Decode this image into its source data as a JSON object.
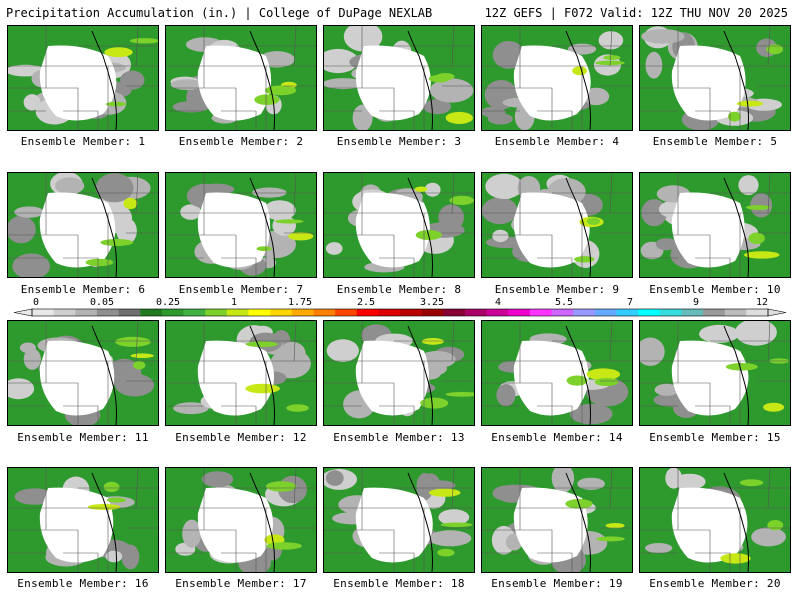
{
  "header": {
    "title_left": "Precipitation Accumulation (in.) | College of DuPage NEXLAB",
    "title_right": "12Z GEFS | F072 Valid: 12Z THU NOV 20 2025"
  },
  "members": [
    {
      "label": "Ensemble Member: 1"
    },
    {
      "label": "Ensemble Member: 2"
    },
    {
      "label": "Ensemble Member: 3"
    },
    {
      "label": "Ensemble Member: 4"
    },
    {
      "label": "Ensemble Member: 5"
    },
    {
      "label": "Ensemble Member: 6"
    },
    {
      "label": "Ensemble Member: 7"
    },
    {
      "label": "Ensemble Member: 8"
    },
    {
      "label": "Ensemble Member: 9"
    },
    {
      "label": "Ensemble Member: 10"
    },
    {
      "label": "Ensemble Member: 11"
    },
    {
      "label": "Ensemble Member: 12"
    },
    {
      "label": "Ensemble Member: 13"
    },
    {
      "label": "Ensemble Member: 14"
    },
    {
      "label": "Ensemble Member: 15"
    },
    {
      "label": "Ensemble Member: 16"
    },
    {
      "label": "Ensemble Member: 17"
    },
    {
      "label": "Ensemble Member: 18"
    },
    {
      "label": "Ensemble Member: 19"
    },
    {
      "label": "Ensemble Member: 20"
    }
  ],
  "colorbar": {
    "labels": [
      "0",
      "0.05",
      "0.25",
      "1",
      "1.75",
      "2.5",
      "3.25",
      "4",
      "5.5",
      "7",
      "9",
      "12"
    ],
    "colors": [
      "#e8e8e8",
      "#cfcfcf",
      "#b3b3b3",
      "#8f8f8f",
      "#6f6f6f",
      "#1f7a1f",
      "#2e9a2e",
      "#3fb23f",
      "#7cd12a",
      "#c8e816",
      "#ffff00",
      "#ffd700",
      "#ffaa00",
      "#ff7f00",
      "#ff4500",
      "#ff0000",
      "#dd0000",
      "#bb0000",
      "#990000",
      "#880033",
      "#aa0066",
      "#cc0099",
      "#ee00cc",
      "#ff33ff",
      "#cc66ff",
      "#9999ff",
      "#66aaff",
      "#33ccff",
      "#00ffff",
      "#33dddd",
      "#66bbbb",
      "#999999",
      "#bbbbbb",
      "#dddddd"
    ]
  }
}
